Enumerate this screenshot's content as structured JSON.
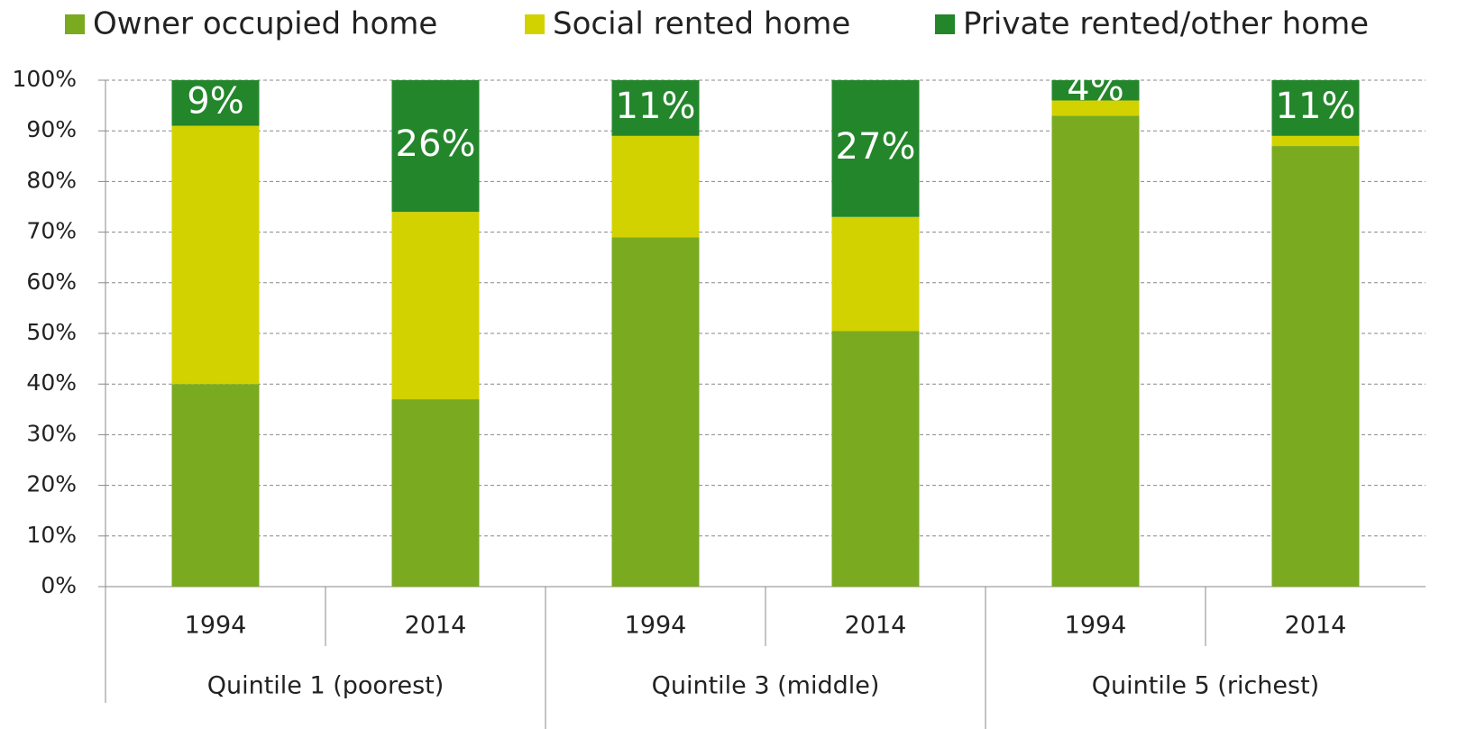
{
  "chart_data": {
    "type": "stacked-bar",
    "groups": [
      {
        "name": "Quintile 1 (poorest)",
        "categories": [
          "1994",
          "2014"
        ]
      },
      {
        "name": "Quintile 3 (middle)",
        "categories": [
          "1994",
          "2014"
        ]
      },
      {
        "name": "Quintile 5 (richest)",
        "categories": [
          "1994",
          "2014"
        ]
      }
    ],
    "series": [
      {
        "name": "Owner occupied home",
        "color": "#7aaa1f",
        "values": [
          40,
          37,
          69,
          50.5,
          93,
          87
        ]
      },
      {
        "name": "Social rented home",
        "color": "#d2d200",
        "values": [
          51,
          37,
          20,
          22.5,
          3,
          2
        ]
      },
      {
        "name": "Private rented/other home",
        "color": "#23862b",
        "values": [
          9,
          26,
          11,
          27,
          4,
          11
        ],
        "value_labels": [
          "9%",
          "26%",
          "11%",
          "27%",
          "4%",
          "11%"
        ]
      }
    ],
    "ylim": [
      0,
      100
    ],
    "yticks": [
      {
        "value": 0,
        "label": "0%"
      },
      {
        "value": 10,
        "label": "10%"
      },
      {
        "value": 20,
        "label": "20%"
      },
      {
        "value": 30,
        "label": "30%"
      },
      {
        "value": 40,
        "label": "40%"
      },
      {
        "value": 50,
        "label": "50%"
      },
      {
        "value": 60,
        "label": "60%"
      },
      {
        "value": 70,
        "label": "70%"
      },
      {
        "value": 80,
        "label": "80%"
      },
      {
        "value": 90,
        "label": "90%"
      },
      {
        "value": 100,
        "label": "100%"
      }
    ],
    "grid": true
  }
}
